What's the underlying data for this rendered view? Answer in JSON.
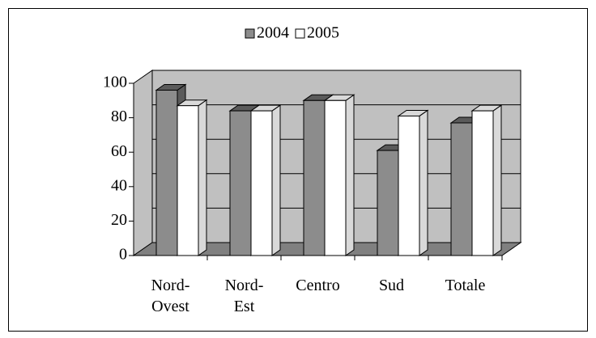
{
  "chart_data": {
    "type": "bar3d",
    "categories": [
      "Nord-Ovest",
      "Nord-Est",
      "Centro",
      "Sud",
      "Totale"
    ],
    "series": [
      {
        "name": "2004",
        "color": "#8c8c8c",
        "values": [
          96,
          84,
          90,
          61,
          77
        ]
      },
      {
        "name": "2005",
        "color": "#ffffff",
        "values": [
          87,
          84,
          90,
          81,
          84
        ]
      }
    ],
    "ylim": [
      0,
      100
    ],
    "yticks": [
      0,
      20,
      40,
      60,
      80,
      100
    ],
    "grid": true,
    "legend": "top"
  }
}
